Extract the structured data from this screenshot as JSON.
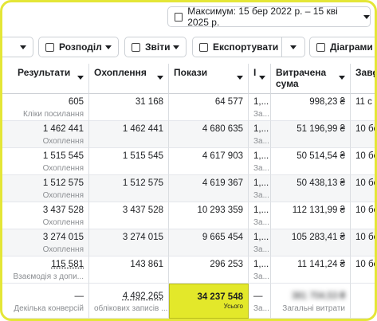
{
  "date_range": "Максимум: 15 бер 2022 р. – 15 кві 2025 р.",
  "toolbar": [
    "Розподіл",
    "Звіти",
    "Експортувати",
    "Діаграми"
  ],
  "table": {
    "headers": [
      "Результати",
      "Охоплення",
      "Покази",
      "І",
      "Витрачена сума",
      "Заве"
    ],
    "rows": [
      [
        {
          "text": "605",
          "sub": "Кліки посилання"
        },
        {
          "text": "31 168"
        },
        {
          "text": "64 577"
        },
        {
          "text": "1,...",
          "sub": "За..."
        },
        {
          "text": "998,23 ₴"
        },
        {
          "text": "11 с"
        }
      ],
      [
        {
          "text": "1 462 441",
          "sub": "Охоплення"
        },
        {
          "text": "1 462 441"
        },
        {
          "text": "4 680 635"
        },
        {
          "text": "1,...",
          "sub": "За..."
        },
        {
          "text": "51 196,99 ₴"
        },
        {
          "text": "10 бе"
        }
      ],
      [
        {
          "text": "1 515 545",
          "sub": "Охоплення"
        },
        {
          "text": "1 515 545"
        },
        {
          "text": "4 617 903"
        },
        {
          "text": "1,...",
          "sub": "За..."
        },
        {
          "text": "50 514,54 ₴"
        },
        {
          "text": "10 бе"
        }
      ],
      [
        {
          "text": "1 512 575",
          "sub": "Охоплення"
        },
        {
          "text": "1 512 575"
        },
        {
          "text": "4 619 367"
        },
        {
          "text": "1,...",
          "sub": "За..."
        },
        {
          "text": "50 438,13 ₴"
        },
        {
          "text": "10 бе"
        }
      ],
      [
        {
          "text": "3 437 528",
          "sub": "Охоплення"
        },
        {
          "text": "3 437 528"
        },
        {
          "text": "10 293 359"
        },
        {
          "text": "1,...",
          "sub": "За..."
        },
        {
          "text": "112 131,99 ₴"
        },
        {
          "text": "10 бе"
        }
      ],
      [
        {
          "text": "3 274 015",
          "sub": "Охоплення"
        },
        {
          "text": "3 274 015"
        },
        {
          "text": "9 665 454"
        },
        {
          "text": "1,...",
          "sub": "За..."
        },
        {
          "text": "105 283,41 ₴"
        },
        {
          "text": "10 бе"
        }
      ],
      [
        {
          "text": "115 581",
          "sub": "Взаємодія з допи..."
        },
        {
          "text": "143 861"
        },
        {
          "text": "296 253"
        },
        {
          "text": "1,...",
          "sub": "За..."
        },
        {
          "text": "11 141,24 ₴"
        },
        {
          "text": "10 бе"
        }
      ]
    ],
    "totals": [
      {
        "text": "—",
        "sub": "Декілька конверсій"
      },
      {
        "text": "4 492 265",
        "sub": "облікових записів ..."
      },
      {
        "text": "34 237 548",
        "sub": "Усього"
      },
      {
        "text": "—",
        "sub": "За..."
      },
      {
        "text": "381 704,53 ₴",
        "sub": "Загальні витрати"
      }
    ]
  }
}
